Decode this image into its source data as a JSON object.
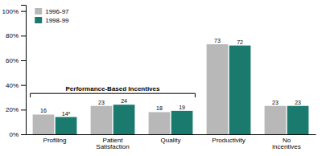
{
  "chart_data": {
    "type": "bar",
    "categories": [
      "Profiling",
      "Patient Satisfaction",
      "Quality",
      "Productivity",
      "No incentives"
    ],
    "series": [
      {
        "name": "1996-97",
        "color": "#b8b8b8",
        "values": [
          16,
          23,
          18,
          73,
          23
        ]
      },
      {
        "name": "1998-99",
        "color": "#1a7a6e",
        "values": [
          14,
          24,
          19,
          72,
          23
        ],
        "value_labels": [
          "14*",
          "24",
          "19",
          "72",
          "23"
        ]
      }
    ],
    "ylim": [
      0,
      105
    ],
    "yticks": [
      {
        "value": 0,
        "label": "0%"
      },
      {
        "value": 20,
        "label": "20%"
      },
      {
        "value": 40,
        "label": "40%"
      },
      {
        "value": 60,
        "label": "60%"
      },
      {
        "value": 80,
        "label": "80%"
      },
      {
        "value": 100,
        "label": "100%"
      }
    ],
    "data_labels": true,
    "grid": false,
    "legend": "upper left",
    "annotations": [
      {
        "text": "Performance-Based Incentives",
        "span": [
          "Profiling",
          "Quality"
        ]
      }
    ]
  }
}
